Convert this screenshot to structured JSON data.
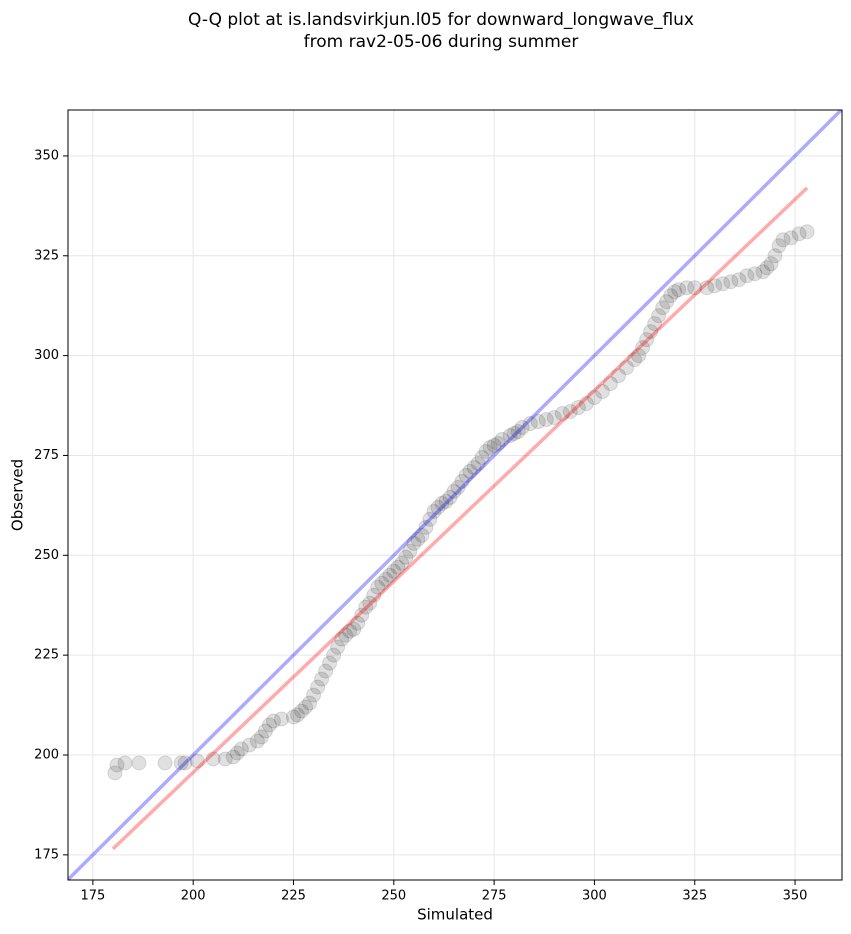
{
  "chart_data": {
    "type": "scatter",
    "title": [
      "Q-Q plot at is.landsvirkjun.l05 for downward_longwave_flux",
      "from rav2-05-06 during summer"
    ],
    "x_label": "Simulated",
    "y_label": "Observed",
    "xlim": [
      168.8,
      361.7
    ],
    "ylim": [
      168.7,
      361.5
    ],
    "xticks": [
      175,
      200,
      225,
      250,
      275,
      300,
      325,
      350
    ],
    "yticks": [
      175,
      200,
      225,
      250,
      275,
      300,
      325,
      350
    ],
    "grid": true,
    "color": "#000000",
    "marker_opacity": 0.12,
    "x": [
      180.5,
      181,
      183,
      186.5,
      193,
      197,
      198,
      201,
      205,
      208,
      210,
      211,
      212,
      214,
      216,
      217,
      218,
      219,
      220,
      222,
      225,
      226,
      227,
      228,
      229,
      230,
      231,
      232,
      233,
      234,
      235,
      236,
      237,
      238,
      239,
      240,
      241,
      242,
      243,
      244,
      245,
      246,
      247,
      248,
      249,
      250,
      251,
      252,
      253,
      254,
      255,
      256,
      257,
      258,
      259,
      260,
      261,
      262,
      263,
      264,
      265,
      266,
      267,
      268,
      269,
      270,
      271,
      272,
      273,
      274,
      275,
      276,
      277,
      279,
      280,
      281,
      282,
      284,
      286,
      288,
      290,
      292,
      294,
      296,
      298,
      300,
      302,
      304,
      306,
      308,
      310,
      311,
      312,
      313,
      314,
      315,
      316,
      317,
      318,
      319,
      320,
      321,
      323,
      325,
      328,
      330,
      332,
      334,
      336,
      338,
      340,
      342,
      343,
      344,
      345,
      346,
      347,
      349,
      351,
      353
    ],
    "values": [
      195.5,
      197.5,
      198,
      198,
      198,
      198,
      198,
      198.5,
      199,
      199,
      199.5,
      200.5,
      201.5,
      202.5,
      203.5,
      204.5,
      206,
      207.5,
      208.5,
      209,
      209.5,
      210,
      211,
      212,
      213,
      215,
      217,
      219,
      221,
      223,
      225,
      227,
      229,
      230,
      231,
      231.5,
      233,
      235,
      237,
      238,
      240,
      242,
      243,
      244,
      245,
      246,
      247,
      248,
      249.5,
      251,
      253,
      254,
      255,
      257,
      259,
      261,
      262,
      263,
      263.5,
      264.5,
      266,
      267,
      268.5,
      270,
      271,
      272,
      273,
      274.5,
      276,
      277,
      277.5,
      278,
      279,
      280,
      280.5,
      281,
      282,
      283,
      283.5,
      284,
      284.5,
      285.5,
      286,
      287,
      288,
      289.5,
      291,
      293,
      295,
      297,
      299,
      300,
      302,
      304,
      306,
      308,
      310,
      312,
      313.5,
      315,
      316,
      316.5,
      317,
      317,
      317,
      317.5,
      318,
      318.5,
      319,
      320,
      320.5,
      321,
      322,
      323,
      325,
      327.5,
      329,
      329.5,
      330.5,
      331
    ],
    "reference_lines": [
      {
        "color": "#0000ff",
        "x": [
          168.8,
          361.7
        ],
        "y": [
          168.8,
          361.7
        ]
      },
      {
        "color": "#ff0000",
        "x": [
          180,
          353
        ],
        "y": [
          176.5,
          342
        ]
      }
    ],
    "line_opacity": 0.33
  }
}
